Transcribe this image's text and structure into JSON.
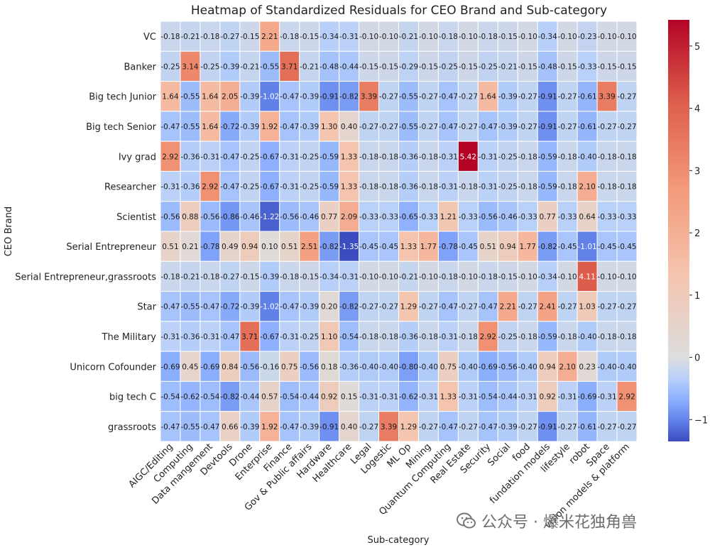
{
  "chart_data": {
    "type": "heatmap",
    "title": "Heatmap of Standardized Residuals for CEO Brand and Sub-category",
    "xlabel": "Sub-category",
    "ylabel": "CEO Brand",
    "x_categories": [
      "AIGC/Editing",
      "Computing",
      "Data mangement",
      "Devtools",
      "Drone",
      "Enterprise",
      "Finance",
      "Gov & Public affairs",
      "Hardware",
      "Healthcare",
      "Legal",
      "Logestic",
      "ML Op",
      "Mining",
      "Quantum Computing",
      "Real Estate",
      "Security",
      "Social",
      "food",
      "fundation models",
      "lifestyle",
      "robot",
      "Space",
      "vision models & platform"
    ],
    "y_categories": [
      "VC",
      "Banker",
      "Big tech Junior",
      "Big tech Senior",
      "Ivy grad",
      "Researcher",
      "Scientist",
      "Serial Entrepreneur",
      "Serial Entrepreneur,grassroots",
      "Star",
      "The Military",
      "Unicorn Cofounder",
      "big tech C",
      "grassroots"
    ],
    "values": [
      [
        -0.18,
        -0.21,
        -0.18,
        -0.27,
        -0.15,
        2.21,
        -0.18,
        -0.15,
        -0.34,
        -0.31,
        -0.1,
        -0.1,
        -0.21,
        -0.1,
        -0.18,
        -0.1,
        -0.18,
        -0.15,
        -0.1,
        -0.34,
        -0.1,
        -0.23,
        -0.1,
        -0.1
      ],
      [
        -0.25,
        3.14,
        -0.25,
        -0.39,
        -0.21,
        -0.55,
        3.71,
        -0.21,
        -0.48,
        -0.44,
        -0.15,
        -0.15,
        -0.29,
        -0.15,
        -0.25,
        -0.15,
        -0.25,
        -0.21,
        -0.15,
        -0.48,
        -0.15,
        -0.33,
        -0.15,
        -0.15
      ],
      [
        1.64,
        -0.55,
        1.64,
        2.05,
        -0.39,
        -1.02,
        -0.47,
        -0.39,
        -0.91,
        -0.82,
        3.39,
        -0.27,
        -0.55,
        -0.27,
        -0.47,
        -0.27,
        1.64,
        -0.39,
        -0.27,
        -0.91,
        -0.27,
        -0.61,
        3.39,
        -0.27
      ],
      [
        -0.47,
        -0.55,
        1.64,
        -0.72,
        -0.39,
        1.92,
        -0.47,
        -0.39,
        1.3,
        0.4,
        -0.27,
        -0.27,
        -0.55,
        -0.27,
        -0.47,
        -0.27,
        -0.47,
        -0.39,
        -0.27,
        -0.91,
        -0.27,
        -0.61,
        -0.27,
        -0.27
      ],
      [
        2.92,
        -0.36,
        -0.31,
        -0.47,
        -0.25,
        -0.67,
        -0.31,
        -0.25,
        -0.59,
        1.33,
        -0.18,
        -0.18,
        -0.36,
        -0.18,
        -0.31,
        5.42,
        -0.31,
        -0.25,
        -0.18,
        -0.59,
        -0.18,
        -0.4,
        -0.18,
        -0.18
      ],
      [
        -0.31,
        -0.36,
        2.92,
        -0.47,
        -0.25,
        -0.67,
        -0.31,
        -0.25,
        -0.59,
        1.33,
        -0.18,
        -0.18,
        -0.36,
        -0.18,
        -0.31,
        -0.18,
        -0.31,
        -0.25,
        -0.18,
        -0.59,
        -0.18,
        2.1,
        -0.18,
        -0.18
      ],
      [
        -0.56,
        0.88,
        -0.56,
        -0.86,
        -0.46,
        -1.22,
        -0.56,
        -0.46,
        0.77,
        2.09,
        -0.33,
        -0.33,
        -0.65,
        -0.33,
        1.21,
        -0.33,
        -0.56,
        -0.46,
        -0.33,
        0.77,
        -0.33,
        0.64,
        -0.33,
        -0.33
      ],
      [
        0.51,
        0.21,
        -0.78,
        0.49,
        0.94,
        0.1,
        0.51,
        2.51,
        -0.82,
        -1.35,
        -0.45,
        -0.45,
        1.33,
        1.77,
        -0.78,
        -0.45,
        0.51,
        0.94,
        1.77,
        -0.82,
        -0.45,
        -1.01,
        -0.45,
        -0.45
      ],
      [
        -0.18,
        -0.21,
        -0.18,
        -0.27,
        -0.15,
        -0.39,
        -0.18,
        -0.15,
        -0.34,
        -0.31,
        -0.1,
        -0.1,
        -0.21,
        -0.1,
        -0.18,
        -0.1,
        -0.18,
        -0.15,
        -0.1,
        -0.34,
        -0.1,
        4.11,
        -0.1,
        -0.1
      ],
      [
        -0.47,
        -0.55,
        -0.47,
        -0.72,
        -0.39,
        -1.02,
        -0.47,
        -0.39,
        0.2,
        -0.82,
        -0.27,
        -0.27,
        1.29,
        -0.27,
        -0.47,
        -0.27,
        -0.47,
        2.21,
        -0.27,
        2.41,
        -0.27,
        1.03,
        -0.27,
        -0.27
      ],
      [
        -0.31,
        -0.36,
        -0.31,
        -0.47,
        3.71,
        -0.67,
        -0.31,
        -0.25,
        1.1,
        -0.54,
        -0.18,
        -0.18,
        -0.36,
        -0.18,
        -0.31,
        -0.18,
        2.92,
        -0.25,
        -0.18,
        -0.59,
        -0.18,
        -0.4,
        -0.18,
        -0.18
      ],
      [
        -0.69,
        0.45,
        -0.69,
        0.84,
        -0.56,
        -0.16,
        0.75,
        -0.56,
        0.18,
        -0.36,
        -0.4,
        -0.4,
        -0.8,
        -0.4,
        0.75,
        -0.4,
        -0.69,
        -0.56,
        -0.4,
        0.94,
        2.1,
        0.23,
        -0.4,
        -0.4
      ],
      [
        -0.54,
        -0.62,
        -0.54,
        -0.82,
        -0.44,
        0.57,
        -0.54,
        -0.44,
        0.92,
        0.15,
        -0.31,
        -0.31,
        -0.62,
        -0.31,
        1.33,
        -0.31,
        -0.54,
        -0.44,
        -0.31,
        0.92,
        -0.31,
        -0.69,
        -0.31,
        2.92
      ],
      [
        -0.47,
        -0.55,
        -0.47,
        0.66,
        -0.39,
        1.92,
        -0.47,
        -0.39,
        -0.91,
        0.4,
        -0.27,
        3.39,
        1.29,
        -0.27,
        -0.47,
        -0.27,
        -0.47,
        -0.39,
        -0.27,
        -0.91,
        -0.27,
        -0.61,
        -0.27,
        -0.27
      ]
    ],
    "colormap": "coolwarm",
    "colorbar": {
      "range": [
        -1.35,
        5.42
      ],
      "ticks": [
        -1,
        0,
        1,
        2,
        3,
        4,
        5
      ],
      "tick_labels": [
        "−1",
        "0",
        "1",
        "2",
        "3",
        "4",
        "5"
      ]
    },
    "grid": false,
    "annotations_format": "0.00"
  },
  "watermark": {
    "text": "公众号 · 爆米花独角兽",
    "icon": "wechat-icon"
  }
}
